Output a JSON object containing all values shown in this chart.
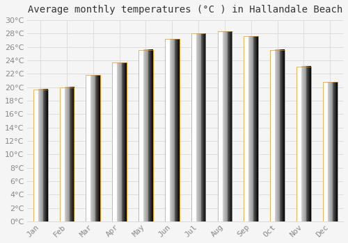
{
  "title": "Average monthly temperatures (°C ) in Hallandale Beach",
  "months": [
    "Jan",
    "Feb",
    "Mar",
    "Apr",
    "May",
    "Jun",
    "Jul",
    "Aug",
    "Sep",
    "Oct",
    "Nov",
    "Dec"
  ],
  "temperatures": [
    19.7,
    20.0,
    21.8,
    23.7,
    25.6,
    27.2,
    28.0,
    28.3,
    27.6,
    25.6,
    23.1,
    20.8
  ],
  "bar_color_left": "#FFD966",
  "bar_color_right": "#FFA500",
  "bar_color_face": "#FFBB33",
  "bar_color_edge": "#E8930A",
  "background_color": "#F5F5F5",
  "plot_bg_color": "#F5F5F5",
  "grid_color": "#DDDDDD",
  "tick_label_color": "#888888",
  "title_color": "#333333",
  "ylim": [
    0,
    30
  ],
  "ytick_step": 2,
  "title_fontsize": 10,
  "tick_fontsize": 8,
  "bar_width": 0.55
}
